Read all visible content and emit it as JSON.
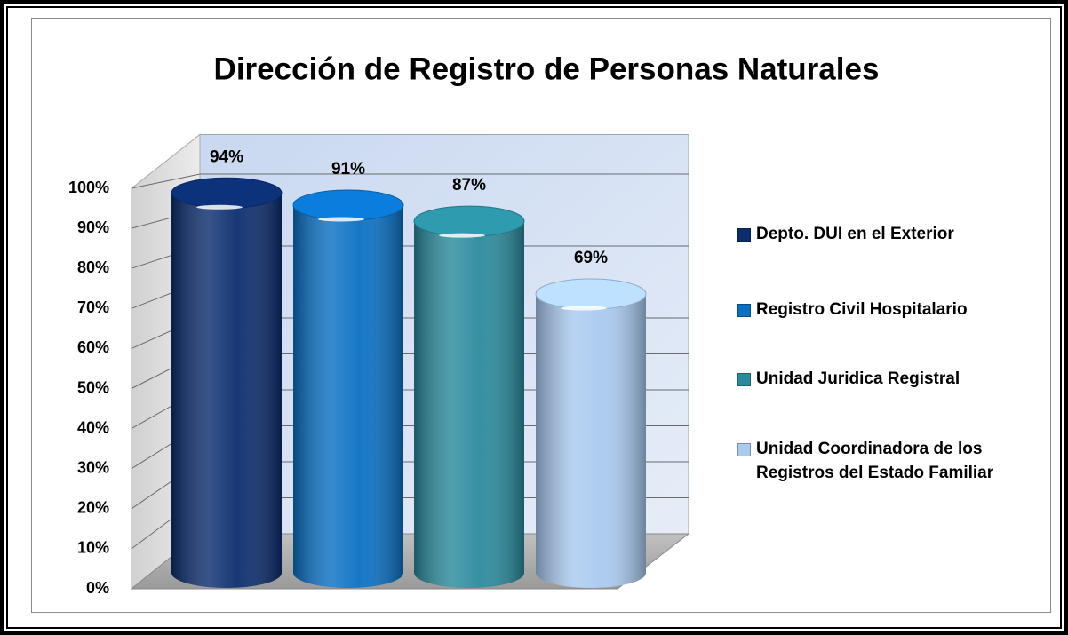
{
  "chart_data": {
    "type": "cylinder",
    "title": "Dirección de Registro de Personas Naturales",
    "series": [
      {
        "name": "Depto. DUI en el Exterior",
        "color": "#0b2d6e",
        "values": [
          94
        ],
        "value_labels": [
          "94%"
        ]
      },
      {
        "name": "Registro Civil Hospitalario",
        "color": "#0a70c4",
        "values": [
          91
        ],
        "value_labels": [
          "91%"
        ]
      },
      {
        "name": "Unidad Juridica Registral",
        "color": "#2a8a9c",
        "values": [
          87
        ],
        "value_labels": [
          "87%"
        ]
      },
      {
        "name": "Unidad Coordinadora de los Registros del Estado Familiar",
        "color": "#a9c9ef",
        "values": [
          69
        ],
        "value_labels": [
          "69%"
        ]
      }
    ],
    "ylim": [
      0,
      100
    ],
    "yticks": [
      {
        "value": 0,
        "label": "0%"
      },
      {
        "value": 10,
        "label": "10%"
      },
      {
        "value": 20,
        "label": "20%"
      },
      {
        "value": 30,
        "label": "30%"
      },
      {
        "value": 40,
        "label": "40%"
      },
      {
        "value": 50,
        "label": "50%"
      },
      {
        "value": 60,
        "label": "60%"
      },
      {
        "value": 70,
        "label": "70%"
      },
      {
        "value": 80,
        "label": "80%"
      },
      {
        "value": 90,
        "label": "90%"
      },
      {
        "value": 100,
        "label": "100%"
      }
    ],
    "grid": true,
    "legend": "right"
  }
}
